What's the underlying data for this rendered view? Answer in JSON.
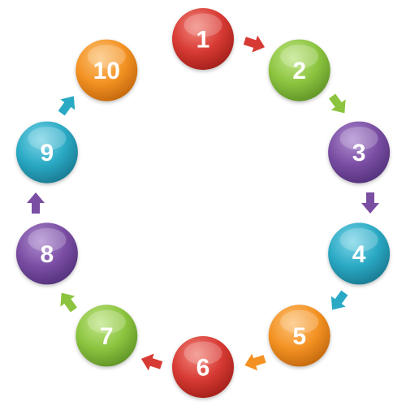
{
  "diagram": {
    "type": "circular-cycle",
    "nodes": [
      {
        "label": "1",
        "color": "#d73a33",
        "light": "#f28a80",
        "dark": "#a11f1a"
      },
      {
        "label": "2",
        "color": "#8cc43f",
        "light": "#c3e78c",
        "dark": "#5e9226"
      },
      {
        "label": "3",
        "color": "#7a4ea3",
        "light": "#b08fd1",
        "dark": "#52307a"
      },
      {
        "label": "4",
        "color": "#2aa9c4",
        "light": "#7fd6e8",
        "dark": "#1a7890"
      },
      {
        "label": "5",
        "color": "#f39223",
        "light": "#fcc47a",
        "dark": "#c1660c"
      },
      {
        "label": "6",
        "color": "#d73a33",
        "light": "#f28a80",
        "dark": "#a11f1a"
      },
      {
        "label": "7",
        "color": "#8cc43f",
        "light": "#c3e78c",
        "dark": "#5e9226"
      },
      {
        "label": "8",
        "color": "#7a4ea3",
        "light": "#b08fd1",
        "dark": "#52307a"
      },
      {
        "label": "9",
        "color": "#2aa9c4",
        "light": "#7fd6e8",
        "dark": "#1a7890"
      },
      {
        "label": "10",
        "color": "#f39223",
        "light": "#fcc47a",
        "dark": "#c1660c"
      }
    ],
    "arrows": [
      {
        "from": "1",
        "to": "2",
        "color": "#d73a33"
      },
      {
        "from": "2",
        "to": "3",
        "color": "#8cc43f"
      },
      {
        "from": "3",
        "to": "4",
        "color": "#7a4ea3"
      },
      {
        "from": "4",
        "to": "5",
        "color": "#2aa9c4"
      },
      {
        "from": "5",
        "to": "6",
        "color": "#f39223"
      },
      {
        "from": "6",
        "to": "7",
        "color": "#d73a33"
      },
      {
        "from": "7",
        "to": "8",
        "color": "#8cc43f"
      },
      {
        "from": "8",
        "to": "9",
        "color": "#7a4ea3"
      },
      {
        "from": "9",
        "to": "10",
        "color": "#2aa9c4"
      }
    ]
  }
}
